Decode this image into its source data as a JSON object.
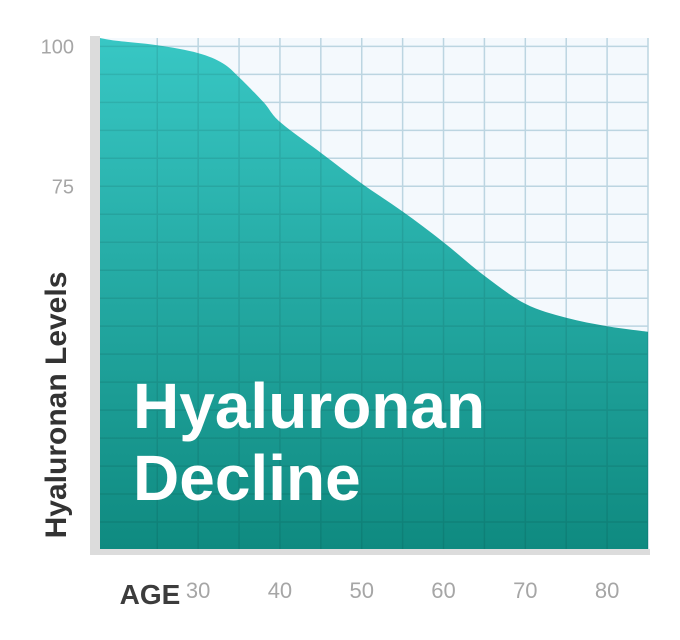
{
  "chart_data": {
    "type": "area",
    "title_lines": [
      "Hyaluronan",
      "Decline"
    ],
    "xlabel": "AGE",
    "ylabel": "Hyaluronan Levels",
    "x_ticks": [
      30,
      40,
      50,
      60,
      70,
      80
    ],
    "y_ticks": [
      75,
      100
    ],
    "series": [
      {
        "x": [
          18,
          20,
          25,
          30,
          33,
          35,
          38,
          40,
          45,
          50,
          55,
          60,
          65,
          70,
          75,
          80,
          85
        ],
        "y": [
          101.5,
          101,
          100.2,
          98.8,
          97,
          94.5,
          90,
          86.5,
          81,
          75.5,
          70.5,
          65,
          59,
          54,
          51.5,
          50,
          49
        ]
      }
    ],
    "xlim": [
      18,
      85
    ],
    "ylim": [
      10,
      101.5
    ],
    "grid": true,
    "colors": {
      "fill_top": "#38c7c4",
      "fill_bottom": "#0f8a80",
      "grid": "#cde9f6",
      "plot_bg": "#f4f9fd",
      "axis": "#dcdcdc"
    }
  }
}
